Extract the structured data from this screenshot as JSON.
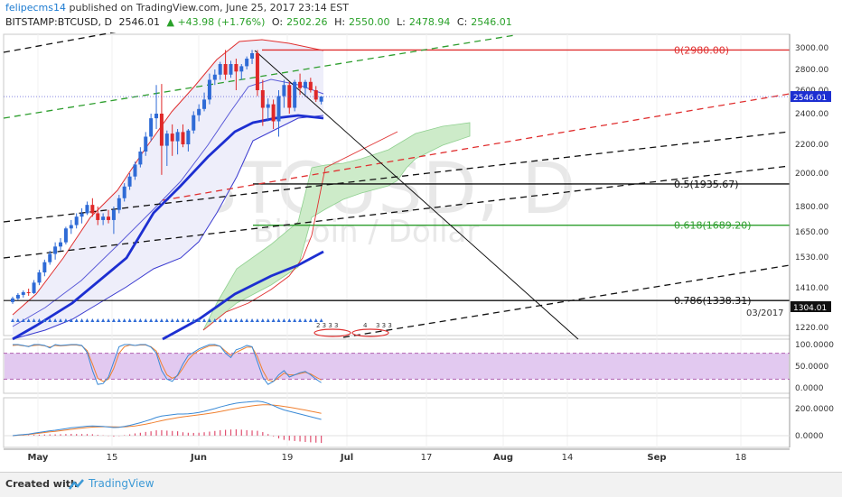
{
  "header": {
    "author": "felipecms14",
    "published_text": "published on TradingView.com, June 25, 2017 23:14 EST",
    "symbol": "BITSTAMP:BTCUSD, D",
    "last": "2546.01",
    "change": "▲ +43.98 (+1.76%)",
    "o_label": "O:",
    "o_value": "2502.26",
    "h_label": "H:",
    "h_value": "2550.00",
    "l_label": "L:",
    "l_value": "2478.94",
    "c_label": "C:",
    "c_value": "2546.01"
  },
  "footer": {
    "created_with": "Created with",
    "brand": "TradingView"
  },
  "chart_data": {
    "type": "candlestick",
    "watermark_main": "BTCUSD, D",
    "watermark_sub": "Bitcoin / Dollar",
    "price_axis_labels": [
      "3000.00",
      "2800.00",
      "2600.00",
      "2400.00",
      "2200.00",
      "2000.00",
      "1800.00",
      "1650.00",
      "1530.00",
      "1410.00",
      "1304.01",
      "1220.00"
    ],
    "price_ticks": [
      3000,
      2800,
      2600,
      2400,
      2200,
      2000,
      1800,
      1650,
      1530,
      1410,
      1220
    ],
    "time_labels": [
      "May",
      "15",
      "Jun",
      "19",
      "Jul",
      "17",
      "Aug",
      "14",
      "Sep",
      "18"
    ],
    "last_price_label": "2546.01",
    "last_price": 2546.01,
    "marker_price_label": "1304.01",
    "marker_price": 1304.01,
    "date_note": "03/2017",
    "fib_levels": [
      {
        "label": "0(2980.00)",
        "price": 2980,
        "color": "#e03030"
      },
      {
        "label": "0.5(1935.67)",
        "price": 1935.67,
        "color": "#111111"
      },
      {
        "label": "0.618(1689.20)",
        "price": 1689.2,
        "color": "#2e9e2e"
      },
      {
        "label": "0.786(1338.31)",
        "price": 1338.31,
        "color": "#111111"
      }
    ],
    "event_labels": [
      "2 3 3 3",
      "4",
      "3 3 3"
    ],
    "stoch_axis_labels": [
      "100.0000",
      "50.0000",
      "0.0000"
    ],
    "stoch_ticks": [
      100,
      50,
      0
    ],
    "macd_axis_labels": [
      "200.0000",
      "0.0000"
    ],
    "macd_ticks": [
      200,
      0
    ],
    "colors": {
      "up": "#2f6bd6",
      "down": "#e02828",
      "bb": "#e03030",
      "ma": "#1d2fd1",
      "cloud": "#8fd08f"
    },
    "candles": [
      [
        1330,
        1360,
        1320,
        1350
      ],
      [
        1350,
        1380,
        1340,
        1370
      ],
      [
        1370,
        1395,
        1355,
        1385
      ],
      [
        1385,
        1405,
        1365,
        1380
      ],
      [
        1380,
        1440,
        1375,
        1430
      ],
      [
        1430,
        1480,
        1420,
        1470
      ],
      [
        1470,
        1520,
        1455,
        1510
      ],
      [
        1510,
        1560,
        1500,
        1545
      ],
      [
        1545,
        1600,
        1520,
        1580
      ],
      [
        1580,
        1620,
        1560,
        1600
      ],
      [
        1600,
        1680,
        1590,
        1670
      ],
      [
        1670,
        1720,
        1640,
        1690
      ],
      [
        1690,
        1760,
        1670,
        1740
      ],
      [
        1740,
        1790,
        1700,
        1760
      ],
      [
        1760,
        1830,
        1750,
        1810
      ],
      [
        1810,
        1850,
        1740,
        1760
      ],
      [
        1760,
        1800,
        1690,
        1720
      ],
      [
        1720,
        1760,
        1690,
        1740
      ],
      [
        1740,
        1780,
        1700,
        1720
      ],
      [
        1720,
        1800,
        1640,
        1780
      ],
      [
        1780,
        1870,
        1760,
        1850
      ],
      [
        1850,
        1940,
        1830,
        1920
      ],
      [
        1920,
        2000,
        1900,
        1980
      ],
      [
        1980,
        2080,
        1960,
        2060
      ],
      [
        2060,
        2180,
        2040,
        2150
      ],
      [
        2150,
        2280,
        2120,
        2250
      ],
      [
        2250,
        2400,
        2220,
        2370
      ],
      [
        2370,
        2650,
        2300,
        2400
      ],
      [
        2400,
        2660,
        1990,
        2190
      ],
      [
        2190,
        2290,
        2050,
        2270
      ],
      [
        2270,
        2330,
        2120,
        2220
      ],
      [
        2220,
        2300,
        2130,
        2280
      ],
      [
        2280,
        2330,
        2180,
        2200
      ],
      [
        2200,
        2300,
        2150,
        2290
      ],
      [
        2290,
        2420,
        2270,
        2390
      ],
      [
        2390,
        2480,
        2350,
        2440
      ],
      [
        2440,
        2580,
        2420,
        2520
      ],
      [
        2520,
        2760,
        2480,
        2700
      ],
      [
        2700,
        2800,
        2650,
        2750
      ],
      [
        2750,
        2870,
        2700,
        2850
      ],
      [
        2850,
        2980,
        2700,
        2750
      ],
      [
        2750,
        2880,
        2720,
        2850
      ],
      [
        2850,
        2900,
        2600,
        2780
      ],
      [
        2780,
        2850,
        2700,
        2830
      ],
      [
        2830,
        2920,
        2800,
        2900
      ],
      [
        2900,
        2980,
        2850,
        2950
      ],
      [
        2950,
        2980,
        2550,
        2600
      ],
      [
        2600,
        2700,
        2320,
        2450
      ],
      [
        2450,
        2530,
        2350,
        2480
      ],
      [
        2480,
        2520,
        2300,
        2350
      ],
      [
        2350,
        2600,
        2250,
        2550
      ],
      [
        2550,
        2700,
        2450,
        2650
      ],
      [
        2650,
        2680,
        2400,
        2450
      ],
      [
        2450,
        2700,
        2420,
        2680
      ],
      [
        2680,
        2760,
        2560,
        2620
      ],
      [
        2620,
        2700,
        2560,
        2680
      ],
      [
        2680,
        2720,
        2580,
        2600
      ],
      [
        2600,
        2640,
        2500,
        2520
      ],
      [
        2502.26,
        2550,
        2478.94,
        2546.01
      ]
    ]
  }
}
